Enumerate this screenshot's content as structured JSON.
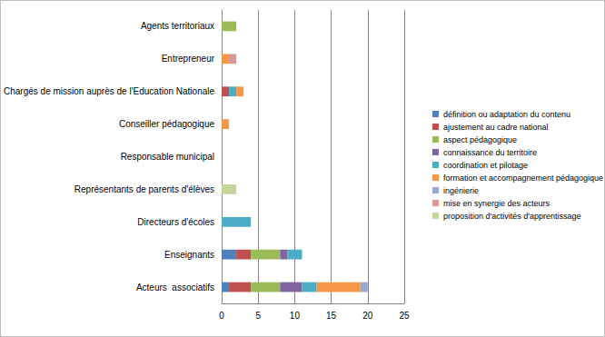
{
  "chart_data": {
    "type": "bar",
    "orientation": "horizontal",
    "stacked": true,
    "grid": true,
    "legend": "right",
    "categories": [
      "Acteurs  associatifs",
      "Enseignants",
      "Directeurs d'écoles",
      "Représentants de parents d'élèves",
      "Responsable municipal",
      "Conseiller pédagogique",
      "Chargés de mission auprès de l'Education Nationale",
      "Entrepreneur",
      "Agents territoriaux"
    ],
    "xlim": [
      0,
      25
    ],
    "xticks": [
      0,
      5,
      10,
      15,
      20,
      25
    ],
    "series": [
      {
        "name": "définition ou adaptation du contenu",
        "color": "#4f81bd",
        "values": [
          1,
          2,
          0,
          0,
          0,
          0,
          0,
          0,
          0
        ]
      },
      {
        "name": "ajustement au cadre national",
        "color": "#c0504d",
        "values": [
          3,
          2,
          0,
          0,
          0,
          0,
          1,
          0,
          0
        ]
      },
      {
        "name": "aspect pédagogique",
        "color": "#9bbb59",
        "values": [
          4,
          4,
          0,
          0,
          0,
          0,
          0,
          0,
          2
        ]
      },
      {
        "name": "connaissance du territoire",
        "color": "#8064a2",
        "values": [
          3,
          1,
          0,
          0,
          0,
          0,
          0,
          0,
          0
        ]
      },
      {
        "name": "coordination et pilotage",
        "color": "#4bacc6",
        "values": [
          2,
          2,
          4,
          0,
          0,
          0,
          1,
          0,
          0
        ]
      },
      {
        "name": "formation et accompagnement pédagogique",
        "color": "#f79646",
        "values": [
          6,
          0,
          0,
          0,
          0,
          1,
          1,
          1,
          0
        ]
      },
      {
        "name": "ingénierie",
        "color": "#95a9d3",
        "values": [
          1,
          0,
          0,
          0,
          0,
          0,
          0,
          0,
          0
        ]
      },
      {
        "name": "mise en synergie des acteurs",
        "color": "#d99694",
        "values": [
          0,
          0,
          0,
          0,
          0,
          0,
          0,
          1,
          0
        ]
      },
      {
        "name": "proposition d'activités d'apprentissage",
        "color": "#c3d69b",
        "values": [
          0,
          0,
          0,
          2,
          0,
          0,
          0,
          0,
          0
        ]
      }
    ]
  }
}
